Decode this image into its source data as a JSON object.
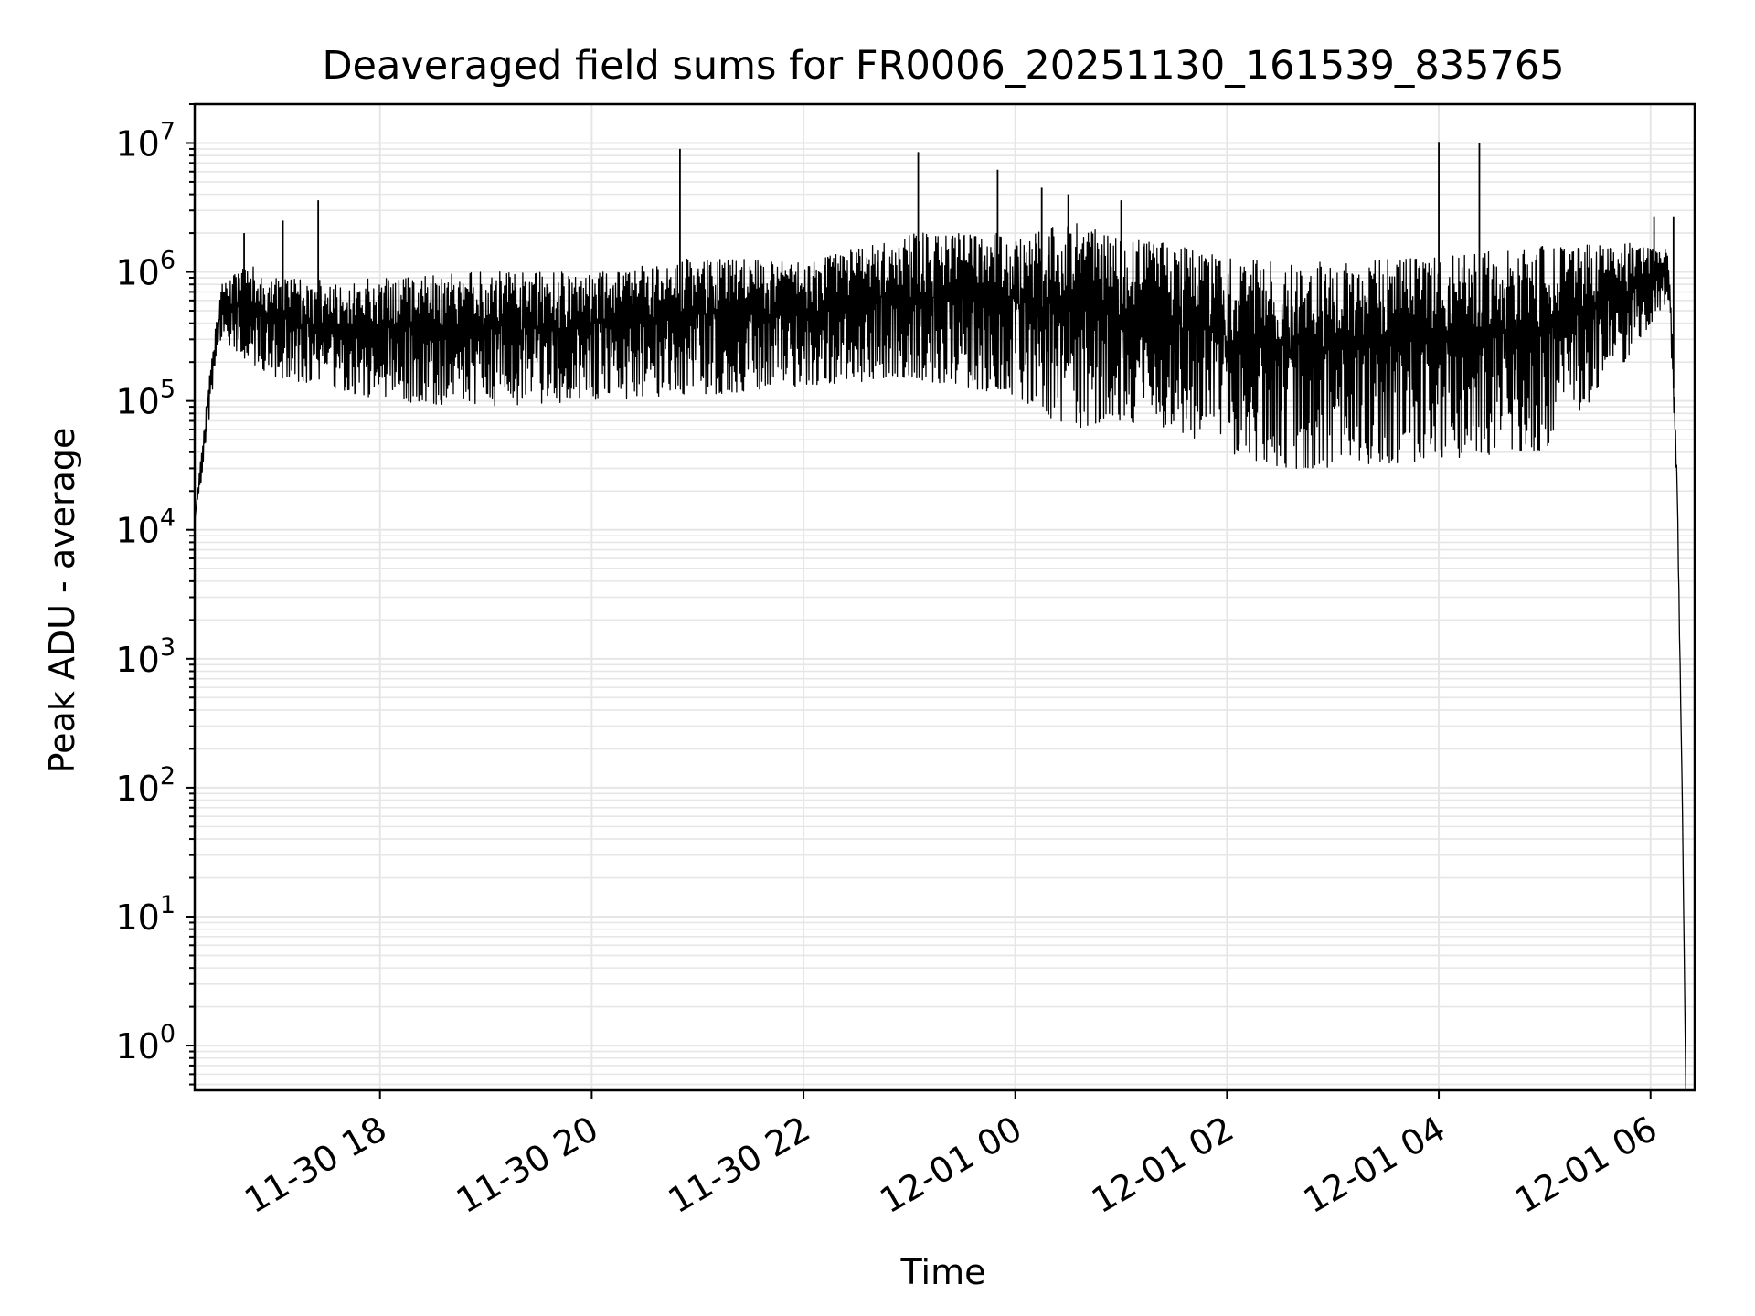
{
  "chart_data": {
    "type": "line",
    "title": "Deaveraged field sums for FR0006_20251130_161539_835765",
    "xlabel": "Time",
    "ylabel": "Peak ADU - average",
    "yscale": "log",
    "ylim": [
      0.45,
      20000000
    ],
    "xlim": [
      "2025-11-30 16:15",
      "2025-12-01 06:25"
    ],
    "x_ticks": [
      "2025-11-30 18:00",
      "2025-11-30 20:00",
      "2025-11-30 22:00",
      "2025-12-01 00:00",
      "2025-12-01 02:00",
      "2025-12-01 04:00",
      "2025-12-01 06:00"
    ],
    "x_tick_labels": [
      "11-30 18",
      "11-30 20",
      "11-30 22",
      "12-01 00",
      "12-01 02",
      "12-01 04",
      "12-01 06"
    ],
    "y_ticks": [
      1,
      10,
      100,
      1000,
      10000,
      100000,
      1000000,
      10000000
    ],
    "y_tick_labels": [
      {
        "base": "10",
        "exp": "0"
      },
      {
        "base": "10",
        "exp": "1"
      },
      {
        "base": "10",
        "exp": "2"
      },
      {
        "base": "10",
        "exp": "3"
      },
      {
        "base": "10",
        "exp": "4"
      },
      {
        "base": "10",
        "exp": "5"
      },
      {
        "base": "10",
        "exp": "6"
      },
      {
        "base": "10",
        "exp": "7"
      }
    ],
    "grid": true,
    "line_color": "#000000",
    "grid_color": "#e6e6e6",
    "series": [
      {
        "envelope": [
          {
            "t": "2025-11-30 16:15",
            "lo": 12000,
            "hi": 12000
          },
          {
            "t": "2025-11-30 16:20",
            "lo": 30000,
            "hi": 60000
          },
          {
            "t": "2025-11-30 16:25",
            "lo": 120000,
            "hi": 250000
          },
          {
            "t": "2025-11-30 16:30",
            "lo": 300000,
            "hi": 800000
          },
          {
            "t": "2025-11-30 16:45",
            "lo": 200000,
            "hi": 1200000
          },
          {
            "t": "2025-11-30 17:00",
            "lo": 150000,
            "hi": 900000
          },
          {
            "t": "2025-11-30 17:30",
            "lo": 130000,
            "hi": 900000
          },
          {
            "t": "2025-11-30 18:00",
            "lo": 100000,
            "hi": 900000
          },
          {
            "t": "2025-11-30 19:00",
            "lo": 90000,
            "hi": 1000000
          },
          {
            "t": "2025-11-30 20:00",
            "lo": 100000,
            "hi": 1000000
          },
          {
            "t": "2025-11-30 21:00",
            "lo": 110000,
            "hi": 1300000
          },
          {
            "t": "2025-11-30 22:00",
            "lo": 130000,
            "hi": 1200000
          },
          {
            "t": "2025-11-30 23:00",
            "lo": 150000,
            "hi": 2000000
          },
          {
            "t": "2025-12-01 00:00",
            "lo": 110000,
            "hi": 2000000
          },
          {
            "t": "2025-12-01 00:30",
            "lo": 60000,
            "hi": 2500000
          },
          {
            "t": "2025-12-01 01:00",
            "lo": 70000,
            "hi": 1800000
          },
          {
            "t": "2025-12-01 01:30",
            "lo": 60000,
            "hi": 1700000
          },
          {
            "t": "2025-12-01 02:00",
            "lo": 40000,
            "hi": 1300000
          },
          {
            "t": "2025-12-01 02:30",
            "lo": 30000,
            "hi": 1200000
          },
          {
            "t": "2025-12-01 03:00",
            "lo": 30000,
            "hi": 1200000
          },
          {
            "t": "2025-12-01 04:00",
            "lo": 35000,
            "hi": 1300000
          },
          {
            "t": "2025-12-01 05:00",
            "lo": 40000,
            "hi": 1600000
          },
          {
            "t": "2025-12-01 05:45",
            "lo": 200000,
            "hi": 1700000
          },
          {
            "t": "2025-12-01 06:10",
            "lo": 600000,
            "hi": 1500000
          },
          {
            "t": "2025-12-01 06:12",
            "lo": 200000,
            "hi": 400000
          },
          {
            "t": "2025-12-01 06:15",
            "lo": 20000,
            "hi": 30000
          },
          {
            "t": "2025-12-01 06:18",
            "lo": 80,
            "hi": 80
          },
          {
            "t": "2025-12-01 06:20",
            "lo": 0.45,
            "hi": 0.45
          }
        ],
        "spikes": [
          {
            "t": "2025-11-30 16:43",
            "y": 2000000
          },
          {
            "t": "2025-11-30 17:05",
            "y": 2500000
          },
          {
            "t": "2025-11-30 17:25",
            "y": 3600000
          },
          {
            "t": "2025-11-30 20:50",
            "y": 9000000
          },
          {
            "t": "2025-11-30 23:05",
            "y": 8500000
          },
          {
            "t": "2025-11-30 23:50",
            "y": 6200000
          },
          {
            "t": "2025-12-01 00:15",
            "y": 4500000
          },
          {
            "t": "2025-12-01 00:30",
            "y": 4000000
          },
          {
            "t": "2025-12-01 01:00",
            "y": 3600000
          },
          {
            "t": "2025-12-01 04:00",
            "y": 10200000
          },
          {
            "t": "2025-12-01 04:23",
            "y": 10000000
          },
          {
            "t": "2025-12-01 06:02",
            "y": 2700000
          },
          {
            "t": "2025-12-01 06:13",
            "y": 2700000
          }
        ]
      }
    ]
  }
}
